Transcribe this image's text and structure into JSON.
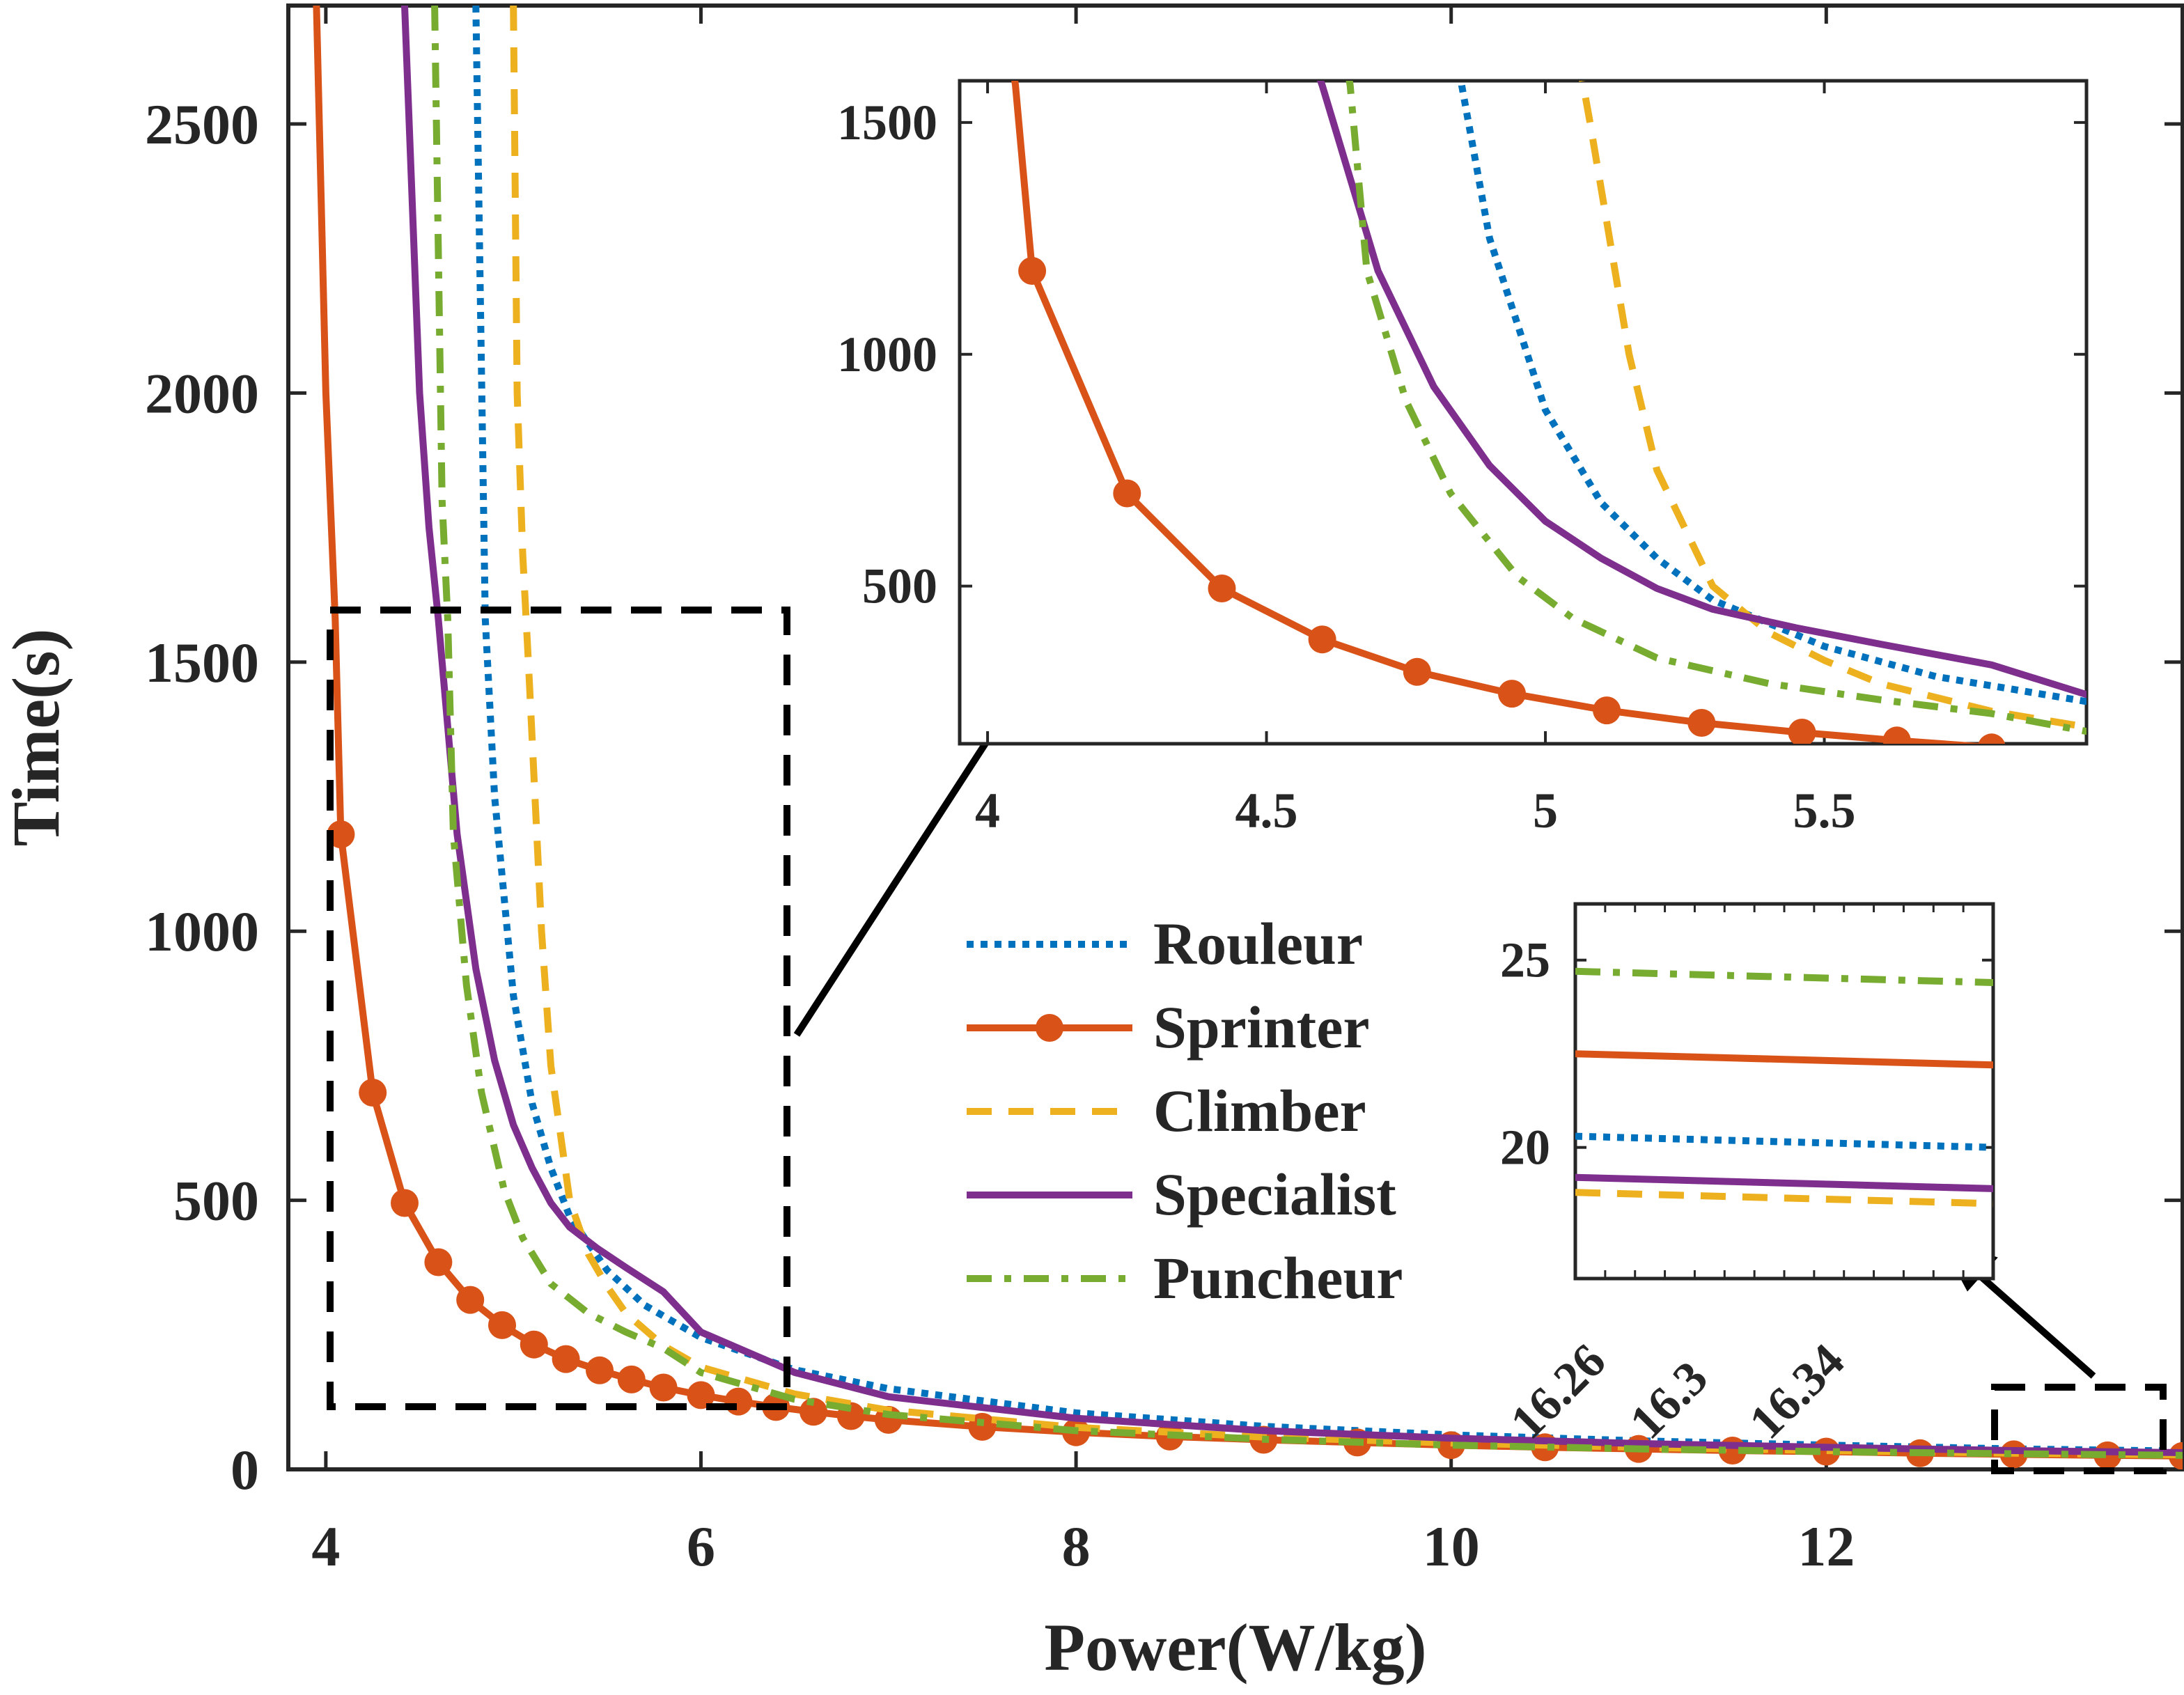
{
  "chart_data": {
    "type": "line",
    "xlabel": "Power(W/kg)",
    "ylabel": "Time(s)",
    "xlim": [
      3.8,
      13.9
    ],
    "ylim": [
      0,
      2720
    ],
    "xticks": [
      4,
      6,
      8,
      10,
      12
    ],
    "yticks": [
      0,
      500,
      1000,
      1500,
      2000,
      2500
    ],
    "grid": false,
    "legend_placement": "center-right",
    "legend": [
      "Rouleur",
      "Sprinter",
      "Climber",
      "Specialist",
      "Puncheur"
    ],
    "series": [
      {
        "name": "Rouleur",
        "style": "dotted",
        "color": "#0072BD",
        "x": [
          4.8,
          4.85,
          4.9,
          5.0,
          5.1,
          5.2,
          5.3,
          5.5,
          5.7,
          6.0,
          6.5,
          7.0,
          8.0,
          9.0,
          10.0,
          11.0,
          12.0,
          13.0,
          13.9
        ],
        "y": [
          2720,
          1580,
          1250,
          880,
          680,
          560,
          470,
          370,
          305,
          245,
          185,
          150,
          105,
          80,
          64,
          53,
          45,
          38,
          34
        ]
      },
      {
        "name": "Sprinter",
        "style": "solid-marker",
        "color": "#D95319",
        "x": [
          3.95,
          4.0,
          4.05,
          4.08,
          4.25,
          4.42,
          4.6,
          4.77,
          4.94,
          5.11,
          5.28,
          5.46,
          5.63,
          5.8,
          6.0,
          6.2,
          6.4,
          6.6,
          6.8,
          7.0,
          7.5,
          8.0,
          8.5,
          9.0,
          9.5,
          10.0,
          10.5,
          11.0,
          11.5,
          12.0,
          12.5,
          13.0,
          13.5,
          13.9
        ],
        "y": [
          2720,
          2000,
          1580,
          1180,
          700,
          495,
          385,
          315,
          268,
          232,
          205,
          184,
          167,
          152,
          138,
          126,
          116,
          107,
          99,
          92,
          79,
          69,
          61,
          55,
          50,
          45,
          41,
          38,
          35,
          33,
          30,
          28,
          26,
          25
        ]
      },
      {
        "name": "Climber",
        "style": "dashed",
        "color": "#EDB120",
        "x": [
          5.0,
          5.02,
          5.05,
          5.08,
          5.15,
          5.2,
          5.3,
          5.4,
          5.5,
          5.6,
          5.8,
          6.0,
          6.5,
          7.0,
          8.0,
          9.0,
          10.0,
          11.0,
          12.0,
          13.0,
          13.9
        ],
        "y": [
          2720,
          2000,
          1700,
          1500,
          1000,
          750,
          500,
          400,
          340,
          290,
          230,
          190,
          140,
          110,
          78,
          60,
          49,
          41,
          35,
          30,
          27
        ]
      },
      {
        "name": "Specialist",
        "style": "solid",
        "color": "#7E2F8E",
        "x": [
          4.42,
          4.5,
          4.55,
          4.6,
          4.7,
          4.8,
          4.9,
          5.0,
          5.1,
          5.2,
          5.3,
          5.45,
          5.6,
          5.8,
          6.0,
          6.5,
          7.0,
          8.0,
          9.0,
          10.0,
          11.0,
          12.0,
          13.0,
          13.9
        ],
        "y": [
          2720,
          2000,
          1750,
          1580,
          1180,
          930,
          760,
          640,
          560,
          495,
          450,
          410,
          375,
          330,
          255,
          180,
          135,
          95,
          72,
          58,
          48,
          41,
          35,
          31
        ]
      },
      {
        "name": "Puncheur",
        "style": "dashdot",
        "color": "#77AC30",
        "x": [
          4.58,
          4.62,
          4.65,
          4.68,
          4.75,
          4.83,
          4.95,
          5.05,
          5.2,
          5.4,
          5.6,
          5.8,
          6.0,
          6.5,
          7.0,
          8.0,
          9.0,
          10.0,
          11.0,
          12.0,
          13.0,
          13.9
        ],
        "y": [
          2720,
          1800,
          1580,
          1180,
          900,
          700,
          520,
          430,
          345,
          290,
          255,
          225,
          180,
          130,
          102,
          72,
          56,
          45,
          38,
          33,
          29,
          26
        ]
      }
    ],
    "inset_top": {
      "xlim": [
        3.95,
        5.97
      ],
      "ylim": [
        160,
        1590
      ],
      "xticks": [
        4,
        4.5,
        5,
        5.5
      ],
      "yticks": [
        500,
        1000,
        1500
      ],
      "tick_labels_x": [
        "4",
        "4.5",
        "5",
        "5.5"
      ],
      "tick_labels_y": [
        "500",
        "1000",
        "1500"
      ]
    },
    "inset_bottom": {
      "xlim": [
        16.24,
        16.38
      ],
      "ylim": [
        16.5,
        26.5
      ],
      "xticks": [
        16.26,
        16.3,
        16.34
      ],
      "yticks": [
        20,
        25
      ],
      "tick_labels_x": [
        "16.26",
        "16.3",
        "16.34"
      ],
      "tick_labels_y": [
        "20",
        "25"
      ],
      "series": [
        {
          "name": "Puncheur",
          "y": [
            24.7,
            24.4
          ]
        },
        {
          "name": "Sprinter",
          "y": [
            22.5,
            22.2
          ]
        },
        {
          "name": "Rouleur",
          "y": [
            20.3,
            20.0
          ]
        },
        {
          "name": "Specialist",
          "y": [
            19.2,
            18.9
          ]
        },
        {
          "name": "Climber",
          "y": [
            18.8,
            18.5
          ]
        }
      ]
    }
  }
}
